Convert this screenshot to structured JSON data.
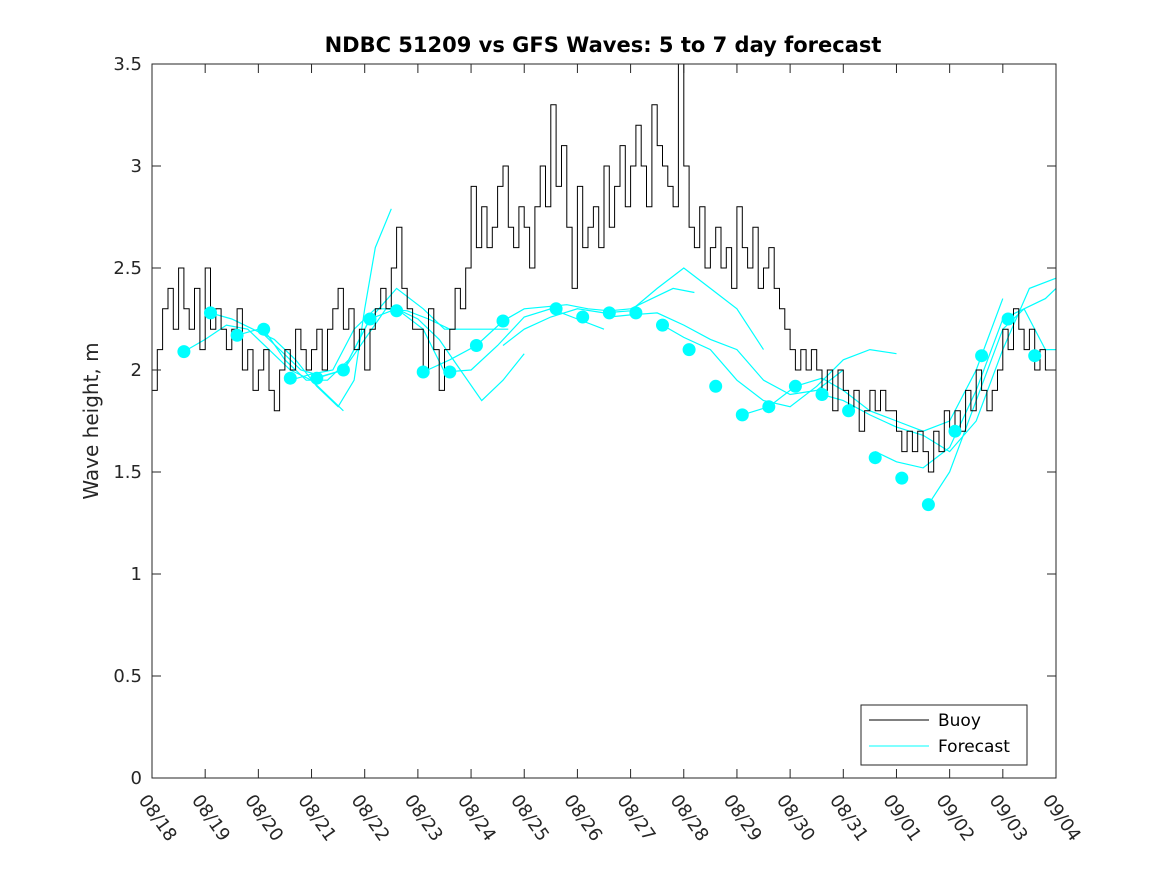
{
  "chart_data": {
    "type": "line",
    "title": "NDBC 51209 vs GFS Waves: 5 to 7 day forecast",
    "xlabel": "",
    "ylabel": "Wave height, m",
    "xlim": [
      0,
      17
    ],
    "ylim": [
      0,
      3.5
    ],
    "x_tick_labels": [
      "08/18",
      "08/19",
      "08/20",
      "08/21",
      "08/22",
      "08/23",
      "08/24",
      "08/25",
      "08/26",
      "08/27",
      "08/28",
      "08/29",
      "08/30",
      "08/31",
      "09/01",
      "09/02",
      "09/03",
      "09/04"
    ],
    "y_ticks": [
      0,
      0.5,
      1,
      1.5,
      2,
      2.5,
      3,
      3.5
    ],
    "y_tick_labels": [
      "0",
      "0.5",
      "1",
      "1.5",
      "2",
      "2.5",
      "3",
      "3.5"
    ],
    "legend": {
      "position": "bottom-right",
      "entries": [
        "Buoy",
        "Forecast"
      ]
    },
    "colors": {
      "buoy": "#000000",
      "forecast": "#00ffff"
    },
    "series": [
      {
        "name": "Buoy",
        "x": [
          0,
          0.1,
          0.2,
          0.3,
          0.4,
          0.5,
          0.6,
          0.7,
          0.8,
          0.9,
          1.0,
          1.1,
          1.2,
          1.3,
          1.4,
          1.5,
          1.6,
          1.7,
          1.8,
          1.9,
          2.0,
          2.1,
          2.2,
          2.3,
          2.4,
          2.5,
          2.6,
          2.7,
          2.8,
          2.9,
          3.0,
          3.1,
          3.2,
          3.3,
          3.4,
          3.5,
          3.6,
          3.7,
          3.8,
          3.9,
          4.0,
          4.1,
          4.2,
          4.3,
          4.4,
          4.5,
          4.6,
          4.7,
          4.8,
          4.9,
          5.0,
          5.1,
          5.2,
          5.3,
          5.4,
          5.5,
          5.6,
          5.7,
          5.8,
          5.9,
          6.0,
          6.1,
          6.2,
          6.3,
          6.4,
          6.5,
          6.6,
          6.7,
          6.8,
          6.9,
          7.0,
          7.1,
          7.2,
          7.3,
          7.4,
          7.5,
          7.6,
          7.7,
          7.8,
          7.9,
          8.0,
          8.1,
          8.2,
          8.3,
          8.4,
          8.5,
          8.6,
          8.7,
          8.8,
          8.9,
          9.0,
          9.1,
          9.2,
          9.3,
          9.4,
          9.5,
          9.6,
          9.7,
          9.8,
          9.9,
          10.0,
          10.1,
          10.2,
          10.3,
          10.4,
          10.5,
          10.6,
          10.7,
          10.8,
          10.9,
          11.0,
          11.1,
          11.2,
          11.3,
          11.4,
          11.5,
          11.6,
          11.7,
          11.8,
          11.9,
          12.0,
          12.1,
          12.2,
          12.3,
          12.4,
          12.5,
          12.6,
          12.7,
          12.8,
          12.9,
          13.0,
          13.1,
          13.2,
          13.3,
          13.4,
          13.5,
          13.6,
          13.7,
          13.8,
          13.9,
          14.0,
          14.1,
          14.2,
          14.3,
          14.4,
          14.5,
          14.6,
          14.7,
          14.8,
          14.9,
          15.0,
          15.1,
          15.2,
          15.3,
          15.4,
          15.5,
          15.6,
          15.7,
          15.8,
          15.9,
          16.0,
          16.1,
          16.2,
          16.3,
          16.4,
          16.5,
          16.6,
          16.7,
          16.8,
          16.9,
          17.0
        ],
        "values": [
          1.9,
          2.1,
          2.3,
          2.4,
          2.2,
          2.5,
          2.3,
          2.2,
          2.4,
          2.1,
          2.5,
          2.2,
          2.3,
          2.2,
          2.1,
          2.2,
          2.3,
          2.0,
          2.1,
          1.9,
          2.0,
          2.1,
          1.9,
          1.8,
          2.0,
          2.1,
          2.0,
          2.2,
          2.1,
          2.0,
          2.1,
          2.2,
          2.0,
          2.2,
          2.3,
          2.4,
          2.2,
          2.3,
          2.1,
          2.2,
          2.0,
          2.2,
          2.3,
          2.4,
          2.3,
          2.5,
          2.7,
          2.4,
          2.3,
          2.2,
          2.2,
          2.0,
          2.3,
          2.1,
          1.9,
          2.1,
          2.2,
          2.4,
          2.3,
          2.5,
          2.9,
          2.6,
          2.8,
          2.6,
          2.7,
          2.9,
          3.0,
          2.7,
          2.6,
          2.8,
          2.7,
          2.5,
          2.8,
          3.0,
          2.8,
          3.3,
          2.9,
          3.1,
          2.7,
          2.4,
          2.9,
          2.6,
          2.7,
          2.8,
          2.6,
          3.0,
          2.7,
          2.9,
          3.1,
          2.8,
          3.0,
          3.2,
          3.0,
          2.8,
          3.3,
          3.1,
          3.0,
          2.9,
          2.8,
          3.5,
          3.0,
          2.7,
          2.6,
          2.8,
          2.5,
          2.6,
          2.7,
          2.5,
          2.6,
          2.4,
          2.8,
          2.6,
          2.5,
          2.7,
          2.4,
          2.5,
          2.6,
          2.4,
          2.3,
          2.2,
          2.1,
          2.0,
          2.1,
          2.0,
          2.1,
          2.0,
          1.9,
          2.0,
          1.8,
          2.0,
          1.9,
          1.8,
          1.9,
          1.7,
          1.8,
          1.9,
          1.8,
          1.9,
          1.8,
          1.8,
          1.7,
          1.6,
          1.7,
          1.6,
          1.7,
          1.6,
          1.5,
          1.7,
          1.6,
          1.8,
          1.7,
          1.8,
          1.7,
          1.9,
          1.8,
          2.0,
          1.9,
          1.8,
          1.9,
          2.0,
          2.2,
          2.1,
          2.3,
          2.2,
          2.1,
          2.2,
          2.0,
          2.1,
          2.0,
          2.0,
          2.0
        ]
      },
      {
        "name": "Forecast",
        "runs": [
          {
            "x": [
              0.6,
              1.0,
              1.4,
              1.8,
              2.2,
              2.6,
              3.0,
              3.2,
              3.4,
              3.6
            ],
            "values": [
              2.09,
              2.15,
              2.22,
              2.2,
              2.1,
              2.0,
              1.95,
              1.9,
              1.85,
              1.8
            ]
          },
          {
            "x": [
              1.1,
              1.5,
              1.9,
              2.3,
              2.7,
              3.1,
              3.5,
              3.8,
              4.0,
              4.2,
              4.5
            ],
            "values": [
              2.28,
              2.25,
              2.2,
              2.15,
              2.05,
              1.92,
              1.82,
              1.95,
              2.3,
              2.6,
              2.79
            ]
          },
          {
            "x": [
              1.6,
              2.0,
              2.4,
              2.8,
              3.2,
              3.6,
              4.0,
              4.4,
              4.8,
              5.2,
              5.6
            ],
            "values": [
              2.17,
              2.2,
              2.1,
              2.0,
              1.97,
              2.0,
              2.15,
              2.3,
              2.29,
              2.25,
              2.2
            ]
          },
          {
            "x": [
              2.1,
              2.5,
              2.9,
              3.3,
              3.7,
              4.1,
              4.6,
              5.1,
              5.5,
              5.9,
              6.3,
              6.7
            ],
            "values": [
              2.2,
              2.05,
              1.95,
              1.95,
              2.05,
              2.25,
              2.4,
              2.3,
              2.2,
              2.2,
              2.2,
              2.2
            ]
          },
          {
            "x": [
              2.6,
              3.0,
              3.4,
              3.8,
              4.2,
              4.6,
              5.0,
              5.4,
              5.8,
              6.2,
              6.6,
              7.0
            ],
            "values": [
              1.95,
              1.98,
              2.0,
              2.2,
              2.3,
              2.3,
              2.25,
              2.15,
              2.0,
              1.85,
              1.95,
              2.08
            ]
          },
          {
            "x": [
              3.1,
              3.6,
              4.1,
              4.6,
              5.1,
              5.5,
              6.0,
              6.5,
              7.0,
              7.5,
              8.0,
              8.5
            ],
            "values": [
              1.96,
              2.0,
              2.25,
              2.3,
              2.2,
              1.99,
              2.0,
              2.12,
              2.26,
              2.3,
              2.25,
              2.2
            ]
          },
          {
            "x": [
              5.1,
              5.6,
              6.1,
              6.6,
              7.0,
              7.4,
              7.8,
              8.2,
              8.6,
              9.0,
              9.4,
              9.8,
              10.2
            ],
            "values": [
              1.99,
              2.05,
              2.12,
              2.24,
              2.3,
              2.31,
              2.32,
              2.3,
              2.29,
              2.3,
              2.35,
              2.4,
              2.38
            ]
          },
          {
            "x": [
              6.6,
              7.0,
              7.5,
              8.0,
              8.5,
              9.0,
              9.5,
              10.0,
              10.5,
              11.0,
              11.5
            ],
            "values": [
              2.12,
              2.2,
              2.26,
              2.3,
              2.28,
              2.29,
              2.4,
              2.5,
              2.4,
              2.3,
              2.1
            ]
          },
          {
            "x": [
              8.6,
              9.0,
              9.5,
              10.0,
              10.5,
              11.0,
              11.5,
              12.0,
              12.5,
              13.0
            ],
            "values": [
              2.26,
              2.27,
              2.28,
              2.22,
              2.15,
              2.1,
              1.95,
              1.88,
              1.9,
              2.0
            ]
          },
          {
            "x": [
              9.6,
              10.0,
              10.5,
              11.0,
              11.5,
              12.0,
              12.5,
              13.0,
              13.5,
              14.0
            ],
            "values": [
              2.22,
              2.16,
              2.1,
              1.95,
              1.85,
              1.82,
              1.92,
              2.05,
              2.1,
              2.08
            ]
          },
          {
            "x": [
              11.1,
              11.6,
              12.1,
              12.6,
              13.0,
              13.5,
              14.0,
              14.5,
              15.0,
              15.5,
              16.0
            ],
            "values": [
              1.78,
              1.82,
              1.92,
              1.96,
              1.9,
              1.8,
              1.75,
              1.7,
              1.75,
              2.0,
              2.35
            ]
          },
          {
            "x": [
              12.6,
              13.0,
              13.5,
              14.0,
              14.5,
              15.0,
              15.5,
              16.0,
              16.5,
              17.0
            ],
            "values": [
              1.88,
              1.85,
              1.78,
              1.72,
              1.68,
              1.6,
              1.75,
              2.1,
              2.4,
              2.45
            ]
          },
          {
            "x": [
              13.6,
              14.0,
              14.5,
              15.0,
              15.5,
              16.0,
              16.4,
              16.8,
              17.0
            ],
            "values": [
              1.6,
              1.55,
              1.52,
              1.62,
              1.9,
              2.25,
              2.3,
              2.35,
              2.4
            ]
          },
          {
            "x": [
              14.6,
              15.0,
              15.5,
              16.0,
              16.4,
              16.8,
              17.0
            ],
            "values": [
              1.34,
              1.5,
              1.85,
              2.2,
              2.3,
              2.1,
              2.1
            ]
          }
        ]
      }
    ],
    "forecast_markers": {
      "x": [
        0.6,
        1.1,
        1.6,
        2.1,
        2.6,
        3.1,
        3.6,
        4.1,
        4.6,
        5.1,
        5.6,
        6.1,
        6.6,
        7.6,
        8.1,
        8.6,
        9.1,
        9.6,
        10.1,
        10.6,
        11.1,
        11.6,
        12.1,
        12.6,
        13.1,
        13.6,
        14.1,
        14.6,
        15.1,
        15.6,
        16.1,
        16.6
      ],
      "values": [
        2.09,
        2.28,
        2.17,
        2.2,
        1.96,
        1.96,
        2.0,
        2.25,
        2.29,
        1.99,
        1.99,
        2.12,
        2.24,
        2.3,
        2.26,
        2.28,
        2.28,
        2.22,
        2.1,
        1.92,
        1.78,
        1.82,
        1.92,
        1.88,
        1.8,
        1.57,
        1.47,
        1.34,
        1.7,
        2.07,
        2.25,
        2.07
      ]
    }
  }
}
